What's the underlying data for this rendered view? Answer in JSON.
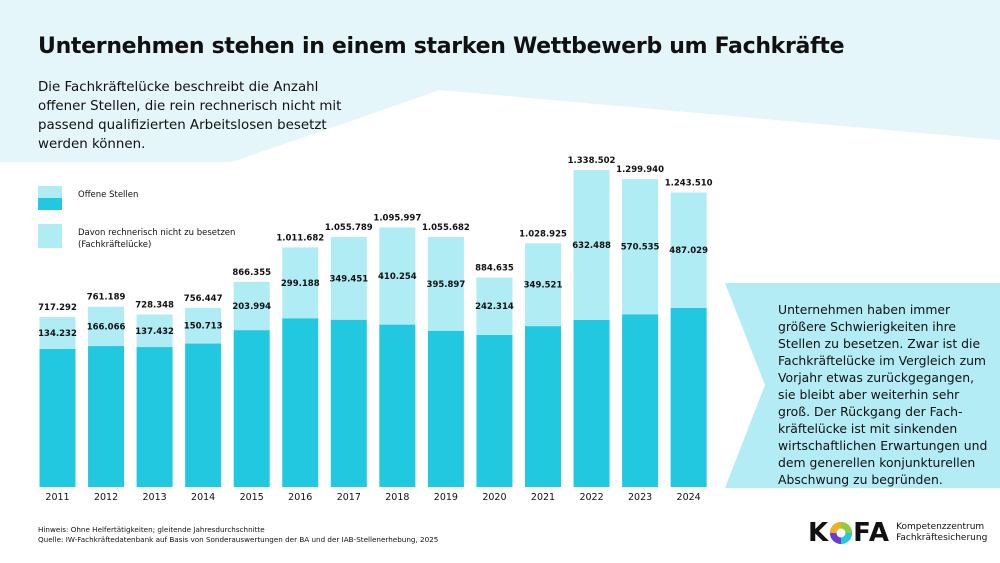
{
  "title": "Unternehmen stehen in einem starken Wettbewerb um Fachkräfte",
  "intro": "Die Fachkräftelücke beschreibt die Anzahl offener Stellen, die rein rechnerisch nicht mit passend qualifizierten Arbeitslosen besetzt werden können.",
  "callout": "Unternehmen haben immer größere Schwierigkeiten ihre Stellen zu besetzen. Zwar ist die Fachkräftelücke im Vergleich zum Vorjahr etwas zurückgegangen, sie bleibt aber weiterhin sehr groß. Der Rückgang der Fach­kräftelücke ist mit sinkenden wirtschaftlichen Erwartungen und dem generellen konjunk­turellen Abschwung zu begründen.",
  "notes": {
    "hint": "Hinweis: Ohne Helfertätigkeiten; gleitende Jahresdurchschnitte",
    "source": "Quelle: IW-Fachkräftedatenbank auf Basis von Sonderauswertungen der BA und der IAB-Stellenerhebung, 2025"
  },
  "logo": {
    "word": "KOFA",
    "line1": "Kompetenzzentrum",
    "line2": "Fachkräftesicherung"
  },
  "colors": {
    "open_positions": "#22c8df",
    "gap": "#b0ecf4",
    "background_band": "#e4f6fa",
    "callout": "#b3ecf4"
  },
  "chart_data": {
    "type": "bar",
    "stacked": true,
    "categories": [
      "2011",
      "2012",
      "2013",
      "2014",
      "2015",
      "2016",
      "2017",
      "2018",
      "2019",
      "2020",
      "2021",
      "2022",
      "2023",
      "2024"
    ],
    "legend": [
      {
        "label": "Offene Stellen"
      },
      {
        "label": "Davon rechnerisch nicht zu besetzen (Fachkräftelücke)"
      }
    ],
    "series": [
      {
        "name": "Offene Stellen",
        "values": [
          717292,
          761189,
          728348,
          756447,
          866355,
          1011682,
          1055789,
          1095997,
          1055682,
          884635,
          1028925,
          1338502,
          1299940,
          1243510
        ],
        "labels": [
          "717.292",
          "761.189",
          "728.348",
          "756.447",
          "866.355",
          "1.011.682",
          "1.055.789",
          "1.095.997",
          "1.055.682",
          "884.635",
          "1.028.925",
          "1.338.502",
          "1.299.940",
          "1.243.510"
        ]
      },
      {
        "name": "Davon rechnerisch nicht zu besetzen (Fachkräftelücke)",
        "values": [
          134232,
          166066,
          137432,
          150713,
          203994,
          299188,
          349451,
          410254,
          395897,
          242314,
          349521,
          632488,
          570535,
          487029
        ],
        "labels": [
          "134.232",
          "166.066",
          "137.432",
          "150.713",
          "203.994",
          "299.188",
          "349.451",
          "410.254",
          "395.897",
          "242.314",
          "349.521",
          "632.488",
          "570.535",
          "487.029"
        ]
      }
    ],
    "legend_position": "top-left",
    "grid": false
  }
}
